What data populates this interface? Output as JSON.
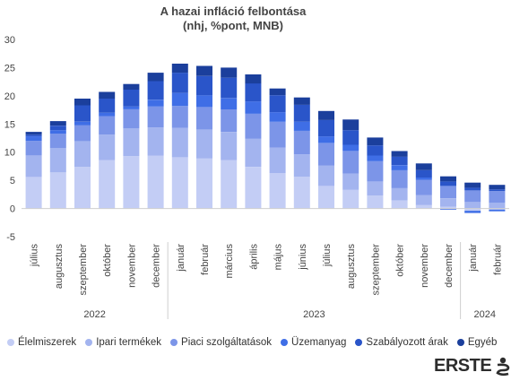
{
  "chart_data": {
    "type": "bar",
    "stacked": true,
    "title": "A hazai infláció felbontása",
    "subtitle": "(nhj, %pont, MNB)",
    "ylim": [
      -5,
      30
    ],
    "yticks": [
      "-5",
      "0",
      "5",
      "10",
      "15",
      "20",
      "25",
      "30"
    ],
    "categories": [
      "július",
      "augusztus",
      "szeptember",
      "október",
      "november",
      "december",
      "január",
      "február",
      "március",
      "április",
      "május",
      "június",
      "július",
      "augusztus",
      "szeptember",
      "október",
      "november",
      "december",
      "január",
      "február"
    ],
    "years": [
      {
        "label": "2022",
        "start": 0,
        "end": 5
      },
      {
        "label": "2023",
        "start": 6,
        "end": 17
      },
      {
        "label": "2024",
        "start": 18,
        "end": 19
      }
    ],
    "series": [
      {
        "name": "Élelmiszerek",
        "color": "#c3cdf5",
        "values": [
          5.6,
          6.4,
          7.4,
          8.6,
          9.3,
          9.4,
          9.1,
          8.9,
          8.6,
          7.4,
          6.3,
          5.6,
          4.0,
          3.3,
          2.3,
          1.4,
          0.6,
          0.3,
          -0.4,
          -0.2
        ]
      },
      {
        "name": "Ipari termékek",
        "color": "#a3b4ef",
        "values": [
          3.8,
          4.3,
          4.5,
          4.5,
          4.9,
          5.0,
          5.2,
          5.1,
          5.0,
          5.0,
          4.5,
          4.0,
          3.6,
          2.9,
          2.5,
          2.2,
          1.8,
          1.5,
          1.2,
          1.0
        ]
      },
      {
        "name": "Piaci szolgáltatások",
        "color": "#7c95e8",
        "values": [
          2.6,
          2.6,
          2.9,
          3.3,
          3.4,
          3.7,
          3.9,
          4.0,
          4.0,
          4.4,
          4.6,
          4.2,
          4.0,
          4.0,
          3.6,
          3.2,
          2.7,
          2.2,
          2.0,
          2.1
        ]
      },
      {
        "name": "Üzemanyag",
        "color": "#3f6ee6",
        "values": [
          0.8,
          0.6,
          0.6,
          0.6,
          0.5,
          1.2,
          2.3,
          2.1,
          2.0,
          2.2,
          1.7,
          1.6,
          1.2,
          1.1,
          1.0,
          0.9,
          0.4,
          -0.2,
          -0.4,
          -0.3
        ]
      },
      {
        "name": "Szabályozott árak",
        "color": "#2a55c9",
        "values": [
          0.3,
          0.8,
          2.9,
          2.5,
          3.0,
          3.3,
          3.6,
          3.4,
          3.6,
          3.2,
          3.0,
          3.0,
          2.9,
          2.6,
          1.8,
          1.5,
          1.3,
          0.8,
          0.5,
          0.3
        ]
      },
      {
        "name": "Egyéb",
        "color": "#1b3f9c",
        "values": [
          0.5,
          0.8,
          1.2,
          1.2,
          1.0,
          1.5,
          1.6,
          1.8,
          1.8,
          1.6,
          1.2,
          1.3,
          1.6,
          1.9,
          1.4,
          1.0,
          1.2,
          0.9,
          0.9,
          0.8
        ]
      }
    ]
  },
  "logo": {
    "text": "ERSTE"
  }
}
